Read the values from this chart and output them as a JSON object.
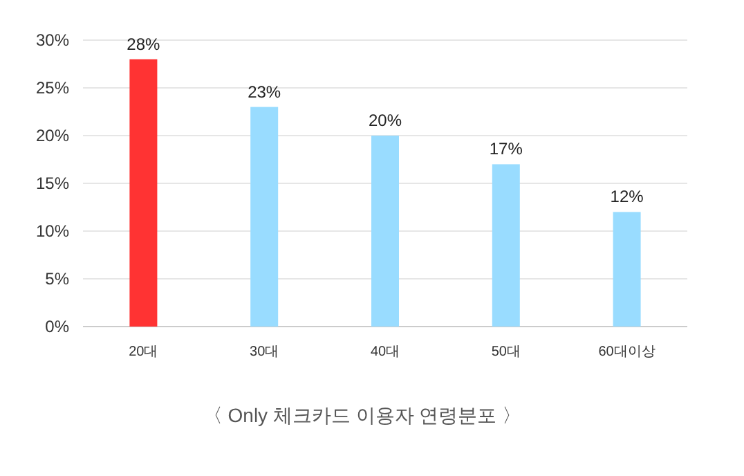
{
  "chart_data": {
    "type": "bar",
    "categories": [
      "20대",
      "30대",
      "40대",
      "50대",
      "60대이상"
    ],
    "values": [
      28,
      23,
      20,
      17,
      12
    ],
    "colors": [
      "#ff3333",
      "#99dcff",
      "#99dcff",
      "#99dcff",
      "#99dcff"
    ],
    "value_labels": [
      "28%",
      "23%",
      "20%",
      "17%",
      "12%"
    ],
    "ylim": [
      0,
      30
    ],
    "yticks": [
      {
        "value": 0,
        "label": "0%"
      },
      {
        "value": 5,
        "label": "5%"
      },
      {
        "value": 10,
        "label": "10%"
      },
      {
        "value": 15,
        "label": "15%"
      },
      {
        "value": 20,
        "label": "20%"
      },
      {
        "value": 25,
        "label": "25%"
      },
      {
        "value": 30,
        "label": "30%"
      }
    ],
    "grid": "y",
    "annotations": [
      "〈 Only 체크카드 이용자 연령분포 〉"
    ]
  }
}
